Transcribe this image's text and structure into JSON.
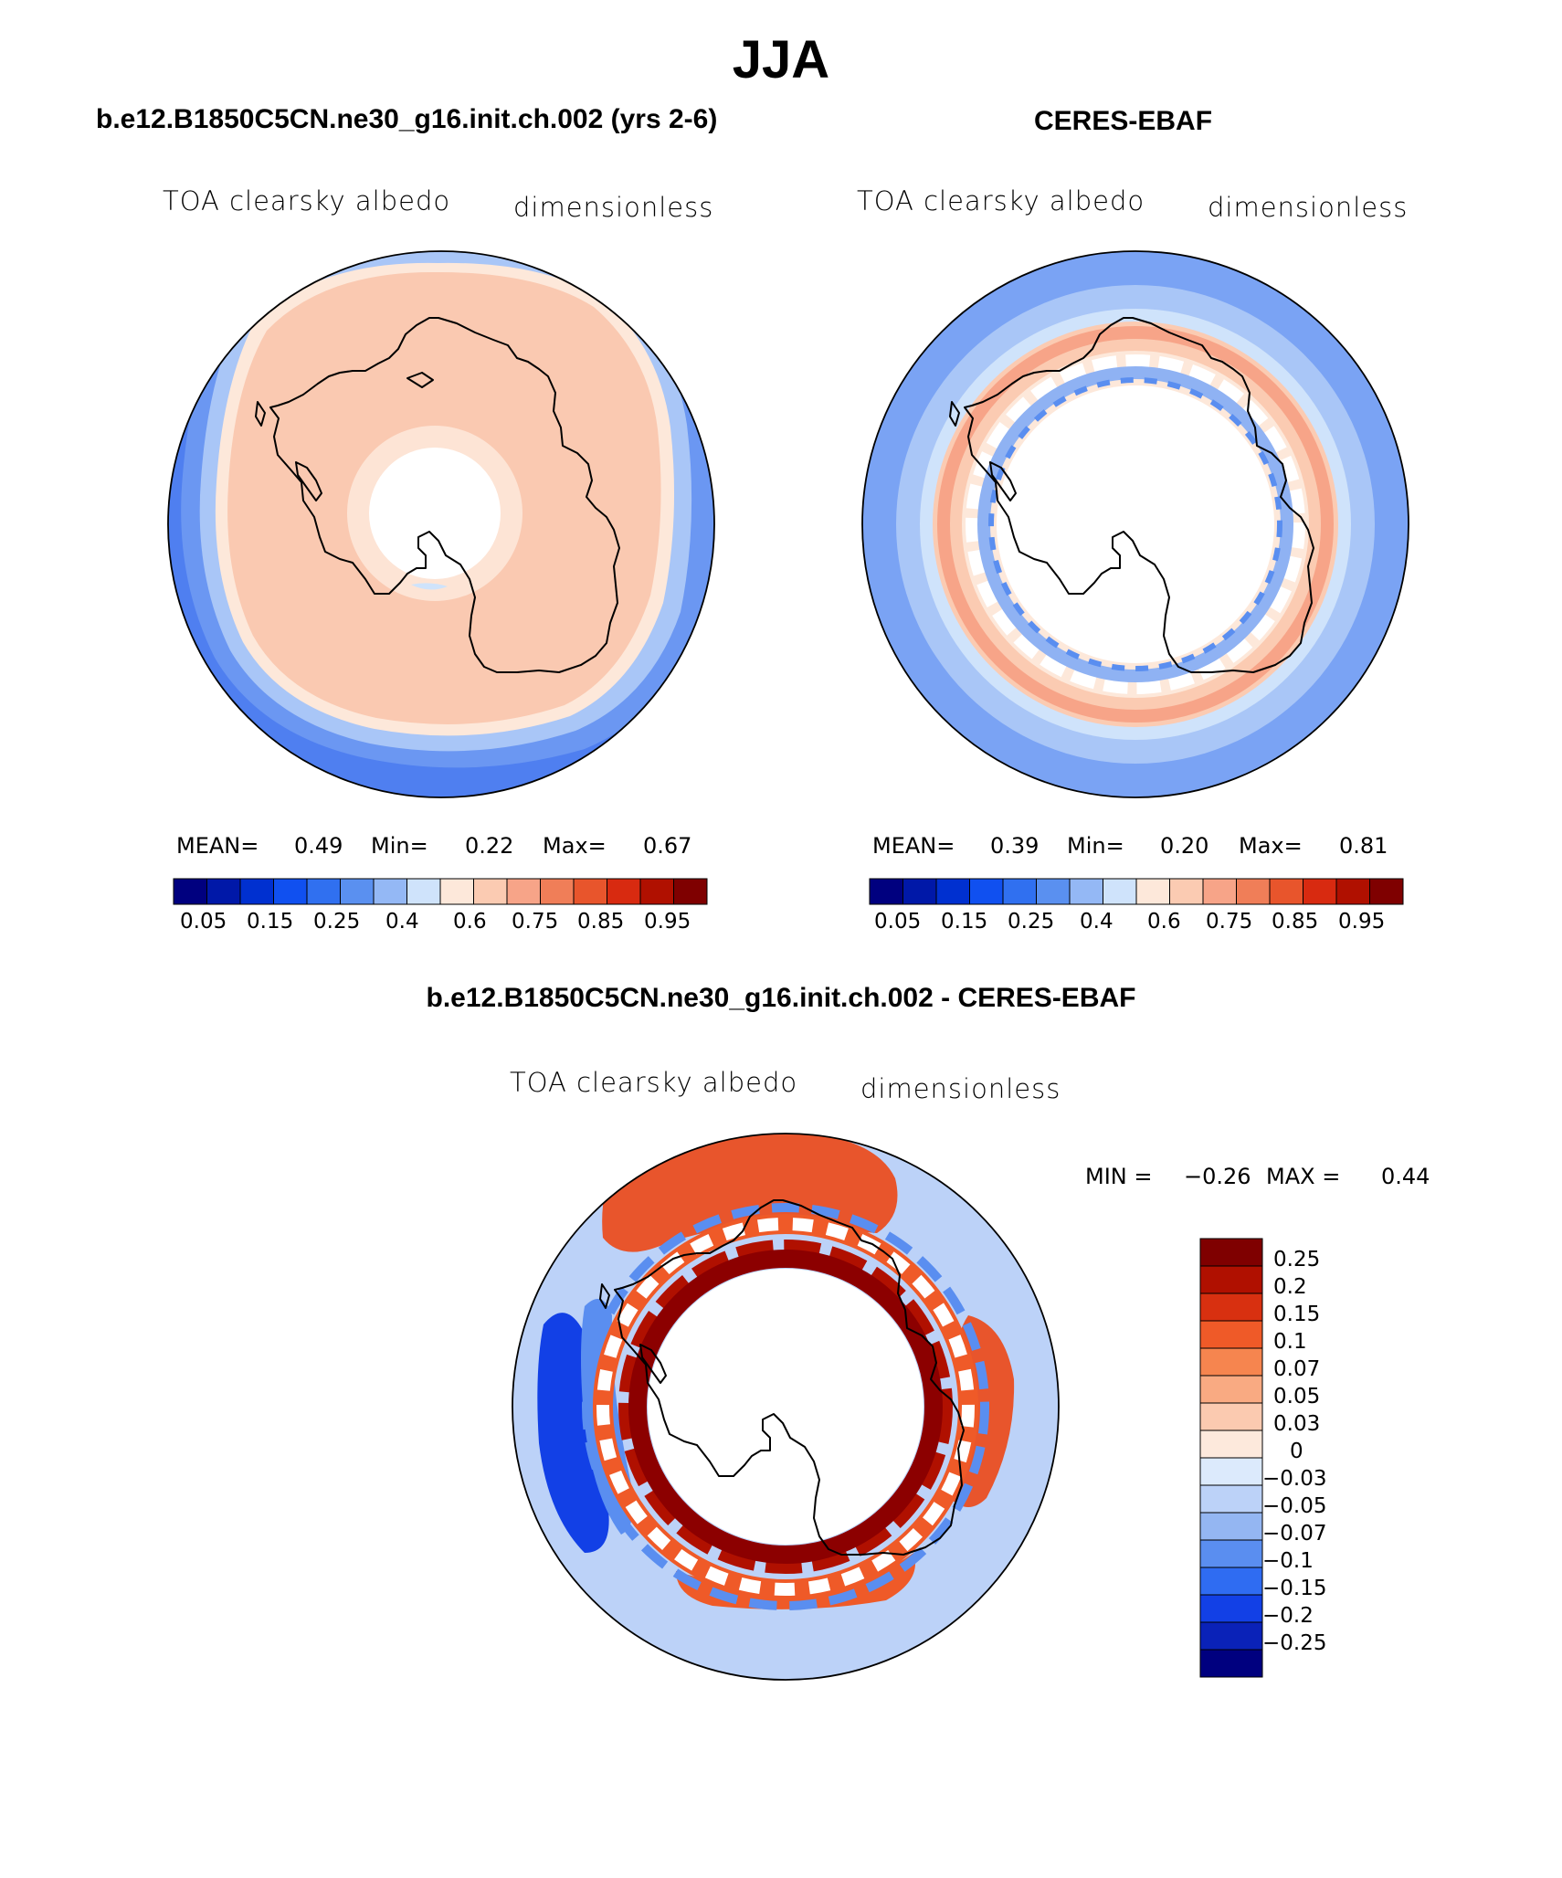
{
  "figure": {
    "season": "JJA",
    "left_panel": {
      "header": "b.e12.B1850C5CN.ne30_g16.init.ch.002 (yrs 2-6)",
      "var_label": "TOA clearsky albedo",
      "units": "dimensionless",
      "stats": {
        "mean_label": "MEAN=",
        "mean": "0.49",
        "min_label": "Min=",
        "min": "0.22",
        "max_label": "Max=",
        "max": "0.67"
      }
    },
    "right_panel": {
      "header": "CERES-EBAF",
      "var_label": "TOA clearsky albedo",
      "units": "dimensionless",
      "stats": {
        "mean_label": "MEAN=",
        "mean": "0.39",
        "min_label": "Min=",
        "min": "0.20",
        "max_label": "Max=",
        "max": "0.81"
      }
    },
    "diff_panel": {
      "header": "b.e12.B1850C5CN.ne30_g16.init.ch.002 - CERES-EBAF",
      "var_label": "TOA clearsky albedo",
      "units": "dimensionless",
      "minmax": {
        "min_label": "MIN =",
        "min": "−0.26",
        "max_label": "MAX =",
        "max": "0.44"
      }
    }
  },
  "colorbar_abs": {
    "colors": [
      "#00007f",
      "#0018a8",
      "#0030d0",
      "#1050f0",
      "#3070f0",
      "#5a90f0",
      "#94b8f5",
      "#cfe3fb",
      "#fde8da",
      "#fbcbb2",
      "#f7a488",
      "#f07e58",
      "#e8552c",
      "#d82a10",
      "#b01000",
      "#7f0000"
    ],
    "tick_labels": [
      "0.05",
      "0.15",
      "0.25",
      "0.4",
      "0.6",
      "0.75",
      "0.85",
      "0.95"
    ]
  },
  "colorbar_diff": {
    "colors_top_to_bottom": [
      "#7f0000",
      "#b01000",
      "#d83010",
      "#ef5a28",
      "#f6854f",
      "#f9aa82",
      "#fbcab0",
      "#fde9dc",
      "#dceafc",
      "#bcd2f8",
      "#94b6f2",
      "#5a8ef0",
      "#2f6cf2",
      "#1240e6",
      "#0a22b8",
      "#00007f"
    ],
    "tick_labels": [
      "0.25",
      "0.2",
      "0.15",
      "0.1",
      "0.07",
      "0.05",
      "0.03",
      "0",
      "−0.03",
      "−0.05",
      "−0.07",
      "−0.1",
      "−0.15",
      "−0.2",
      "−0.25"
    ]
  }
}
